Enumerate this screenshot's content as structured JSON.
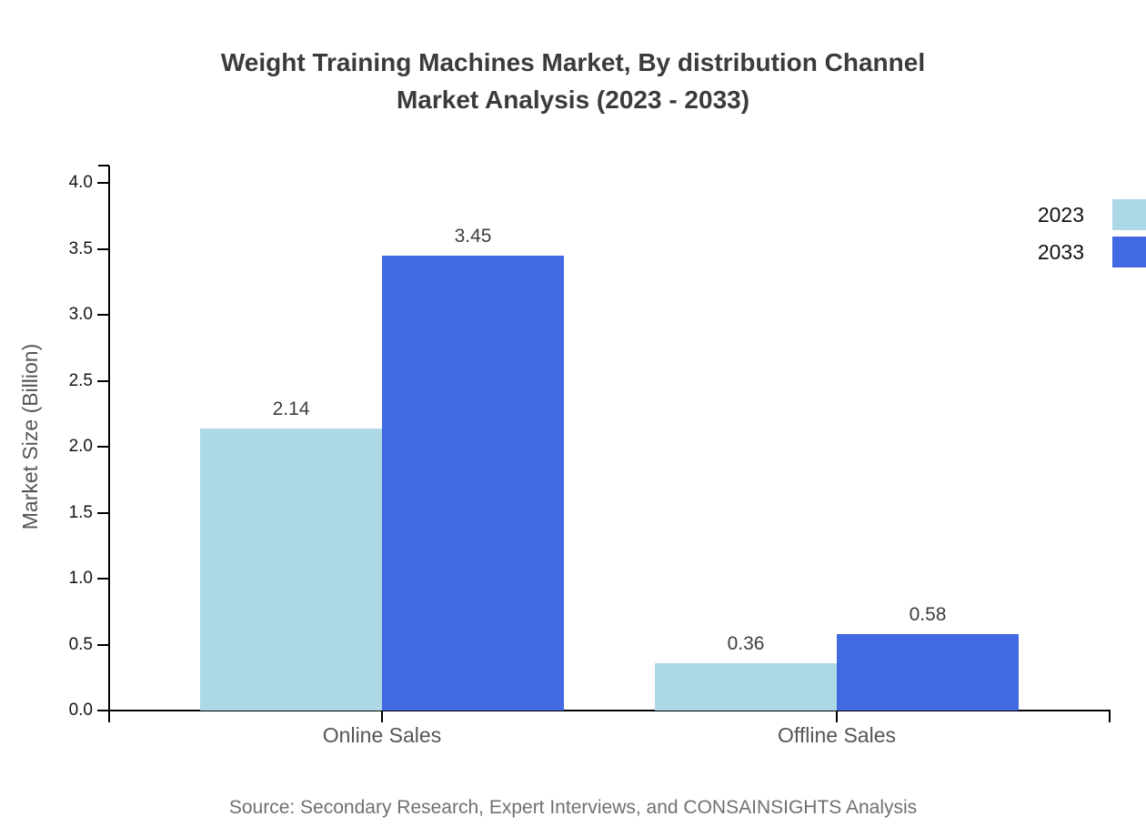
{
  "title": {
    "line1": "Weight Training Machines Market, By distribution Channel",
    "line2": "Market Analysis (2023 - 2033)"
  },
  "source": "Source: Secondary Research, Expert Interviews, and CONSAINSIGHTS Analysis",
  "chart_data": {
    "type": "bar",
    "title": "Weight Training Machines Market, By distribution Channel Market Analysis (2023 - 2033)",
    "categories": [
      "Online Sales",
      "Offline Sales"
    ],
    "series": [
      {
        "name": "2023",
        "color": "#ADD8E6",
        "values": [
          2.14,
          0.36
        ]
      },
      {
        "name": "2033",
        "color": "#4169E1",
        "values": [
          3.45,
          0.58
        ]
      }
    ],
    "xlabel": "",
    "ylabel": "Market Size (Billion)",
    "ylim": [
      0,
      4.0
    ],
    "y_ticks": [
      0.0,
      0.5,
      1.0,
      1.5,
      2.0,
      2.5,
      3.0,
      3.5,
      4.0
    ],
    "grid": false,
    "legend_position": "top-right",
    "value_label_format": "0.00",
    "axis_color": "#000000",
    "text_colors": {
      "title": "#3b3b3b",
      "tick_labels": "#141414",
      "category_labels": "#555555",
      "value_labels": "#3d3d3d",
      "source": "#707070"
    }
  }
}
